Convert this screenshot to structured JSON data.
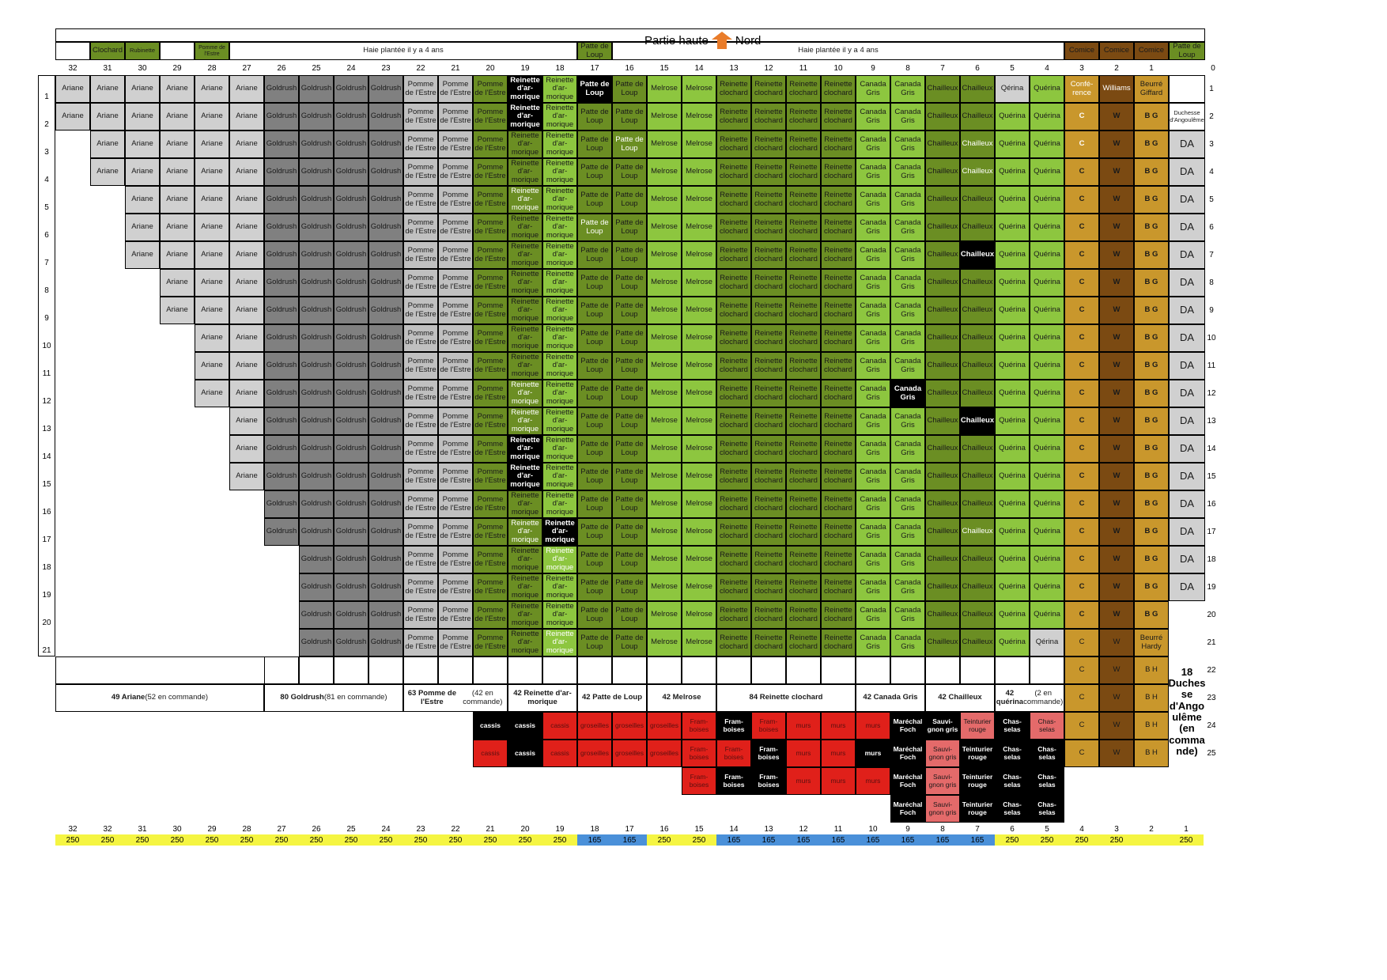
{
  "title": {
    "left": "Partie haute",
    "right": "Nord"
  },
  "header_groups": [
    {
      "col": 31,
      "label": "Clochard"
    },
    {
      "col": 30,
      "label": "Rubinette"
    },
    {
      "col": 28,
      "label": "Pomme de l'Estre"
    },
    {
      "col_from": 27,
      "col_to": 18,
      "label": "Haie plantée il y a 4 ans"
    },
    {
      "col": 17,
      "label": "Patte de Loup"
    },
    {
      "col_from": 16,
      "col_to": 4,
      "label": "Haie plantée il y a 4 ans"
    },
    {
      "col": 3,
      "label": "Comice"
    },
    {
      "col": 2,
      "label": "Comice"
    },
    {
      "col": 1,
      "label": "Comice"
    },
    {
      "col": 0,
      "label": "Patte de Loup"
    }
  ],
  "column_numbers": [
    "32",
    "31",
    "30",
    "29",
    "28",
    "27",
    "26",
    "25",
    "24",
    "23",
    "22",
    "21",
    "20",
    "19",
    "18",
    "17",
    "16",
    "15",
    "14",
    "13",
    "12",
    "11",
    "10",
    "9",
    "8",
    "7",
    "6",
    "5",
    "4",
    "3",
    "2",
    "1",
    "0"
  ],
  "row_numbers_left": [
    "1",
    "2",
    "3",
    "4",
    "5",
    "6",
    "7",
    "8",
    "9",
    "10",
    "11",
    "12",
    "13",
    "14",
    "15",
    "16",
    "17",
    "18",
    "19",
    "20",
    "21"
  ],
  "row_numbers_right": [
    "1",
    "2",
    "3",
    "4",
    "5",
    "6",
    "7",
    "8",
    "9",
    "10",
    "11",
    "12",
    "13",
    "14",
    "15",
    "16",
    "17",
    "18",
    "19",
    "20",
    "21",
    "22",
    "23",
    "24",
    "25"
  ],
  "varieties": {
    "A": "Ariane",
    "G": "Goldrush",
    "P": "Pomme de l'Estre",
    "R": "Reinette d'ar-morique",
    "L": "Patte de Loup",
    "M": "Melrose",
    "RC": "Reinette clochard",
    "CG": "Canada Gris",
    "CH": "Chailleux",
    "Q": "Quérina",
    "QE": "Qérina",
    "C": "C",
    "W": "W",
    "BG": "B G",
    "DA": "DA",
    "BH": "B H",
    "CONF": "Confé-rence",
    "WIL": "Williams",
    "BGF": "Beurré Giffard",
    "BHF": "Beurré Hardy",
    "DUC": "Duchesse d'Angoulême"
  },
  "summary": [
    {
      "n": "49",
      "name": "Ariane",
      "note": "(52 en commande)"
    },
    {
      "n": "80",
      "name": "Goldrush",
      "note": "(81 en commande)"
    },
    {
      "n": "63",
      "name": " Pomme de l'Estre",
      "note": "(42 en commande)"
    },
    {
      "n": "42",
      "name": "Reinette d'ar-morique",
      "note": ""
    },
    {
      "n": "42",
      "name": "Patte de Loup",
      "note": ""
    },
    {
      "n": "42",
      "name": "Melrose",
      "note": ""
    },
    {
      "n": "84",
      "name": "Reinette clochard",
      "note": ""
    },
    {
      "n": "42",
      "name": "Canada Gris",
      "note": ""
    },
    {
      "n": "42",
      "name": "Chailleux",
      "note": ""
    },
    {
      "n": "42",
      "name": "quérina",
      "note": "(2 en commande)"
    }
  ],
  "duchesse_note": "18 Duches se d'Ango ulême (en comma nde)",
  "berries": {
    "cassis": "cassis",
    "groseilles": "groseilles",
    "framboises": "Fram-boises",
    "murs": "murs",
    "marechal": "Maréchal Foch",
    "sauvignon": "Sauvi-gnon gris",
    "teinturier": "Teinturier rouge",
    "chasselas": "Chas-selas"
  },
  "footer_numbers": [
    "32",
    "32",
    "31",
    "30",
    "29",
    "28",
    "27",
    "26",
    "25",
    "24",
    "23",
    "22",
    "21",
    "20",
    "19",
    "18",
    "17",
    "16",
    "15",
    "14",
    "13",
    "12",
    "11",
    "10",
    "9",
    "8",
    "7",
    "6",
    "5",
    "4",
    "3",
    "2",
    "1"
  ],
  "footer_values": [
    "250",
    "250",
    "250",
    "250",
    "250",
    "250",
    "250",
    "250",
    "250",
    "250",
    "250",
    "250",
    "250",
    "250",
    "250",
    "165",
    "165",
    "250",
    "250",
    "165",
    "165",
    "165",
    "165",
    "165",
    "165",
    "165",
    "165",
    "250",
    "250",
    "250",
    "250",
    "",
    "250"
  ],
  "colors": {
    "ariane": "#d0d0d0",
    "goldrush": "#808080",
    "pomme": "#c0c0c0",
    "lightgreen": "#8dc63f",
    "darkgreen": "#6b8e23",
    "brown": "#7b4a12",
    "gold": "#c9972c",
    "red": "#e0201a",
    "pink": "#e46a6a",
    "black": "#000000",
    "yellow": "#f5f542",
    "blue": "#4a90d9"
  }
}
